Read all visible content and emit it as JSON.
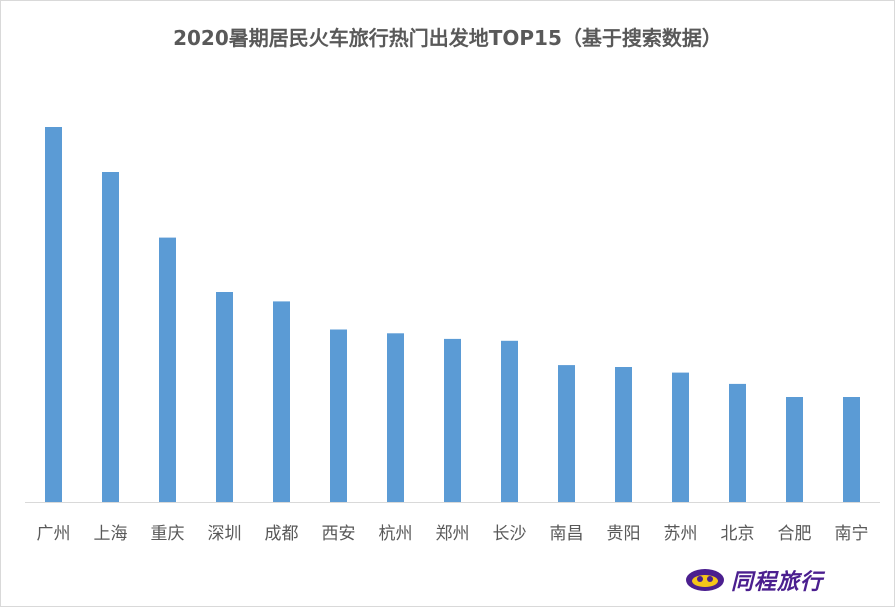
{
  "chart_data": {
    "type": "bar",
    "title": "2020暑期居民火车旅行热门出发地TOP15（基于搜索数据）",
    "categories": [
      "广州",
      "上海",
      "重庆",
      "深圳",
      "成都",
      "西安",
      "杭州",
      "郑州",
      "长沙",
      "南昌",
      "贵阳",
      "苏州",
      "北京",
      "合肥",
      "南宁"
    ],
    "values": [
      100,
      88,
      70.5,
      56,
      53.5,
      46,
      45,
      43.5,
      43,
      36.5,
      36,
      34.5,
      31.5,
      28,
      28
    ],
    "xlabel": "",
    "ylabel": "",
    "ylim": [
      0,
      100
    ],
    "grid": false,
    "legend": "none",
    "bar_color": "#5b9bd5"
  },
  "brand": {
    "name": "同程旅行",
    "color": "#4b1f8f",
    "accent": "#f5c518",
    "icon": "tongcheng-logo-icon"
  }
}
